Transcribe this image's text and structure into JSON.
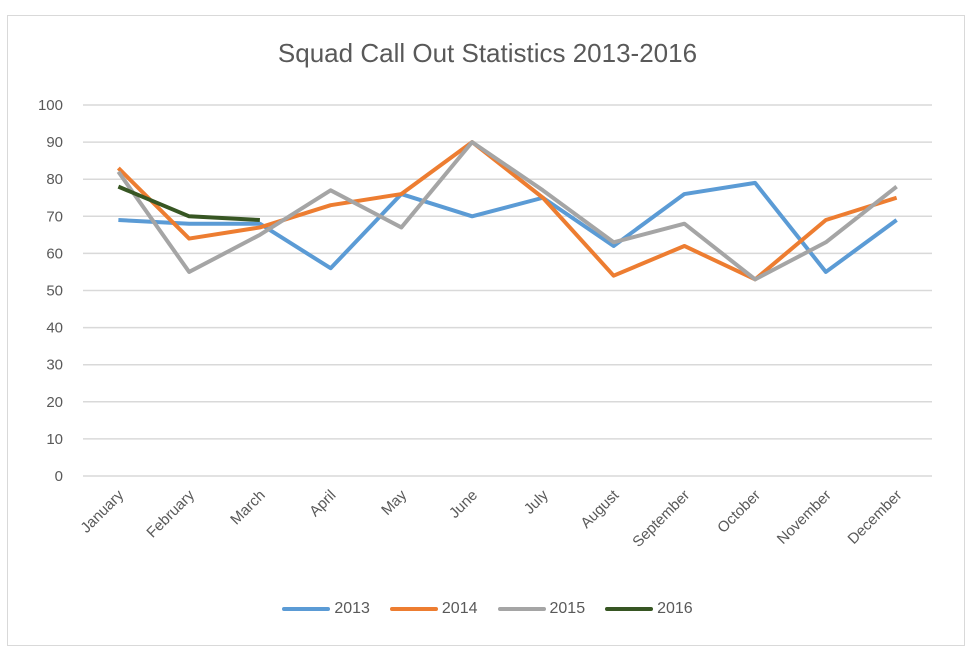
{
  "chart_data": {
    "type": "line",
    "title": "Squad Call Out Statistics 2013-2016",
    "xlabel": "",
    "ylabel": "",
    "ylim": [
      0,
      100
    ],
    "yticks": [
      0,
      10,
      20,
      30,
      40,
      50,
      60,
      70,
      80,
      90,
      100
    ],
    "grid": true,
    "legend_position": "bottom",
    "categories": [
      "January",
      "February",
      "March",
      "April",
      "May",
      "June",
      "July",
      "August",
      "September",
      "October",
      "November",
      "December"
    ],
    "series": [
      {
        "name": "2013",
        "color": "#5b9bd5",
        "values": [
          69,
          68,
          68,
          56,
          76,
          70,
          75,
          62,
          76,
          79,
          55,
          69
        ]
      },
      {
        "name": "2014",
        "color": "#ed7d31",
        "values": [
          83,
          64,
          67,
          73,
          76,
          90,
          75,
          54,
          62,
          53,
          69,
          75
        ]
      },
      {
        "name": "2015",
        "color": "#a5a5a5",
        "values": [
          82,
          55,
          65,
          77,
          67,
          90,
          77,
          63,
          68,
          53,
          63,
          78
        ]
      },
      {
        "name": "2016",
        "color": "#375623",
        "values": [
          78,
          70,
          69
        ]
      }
    ]
  }
}
